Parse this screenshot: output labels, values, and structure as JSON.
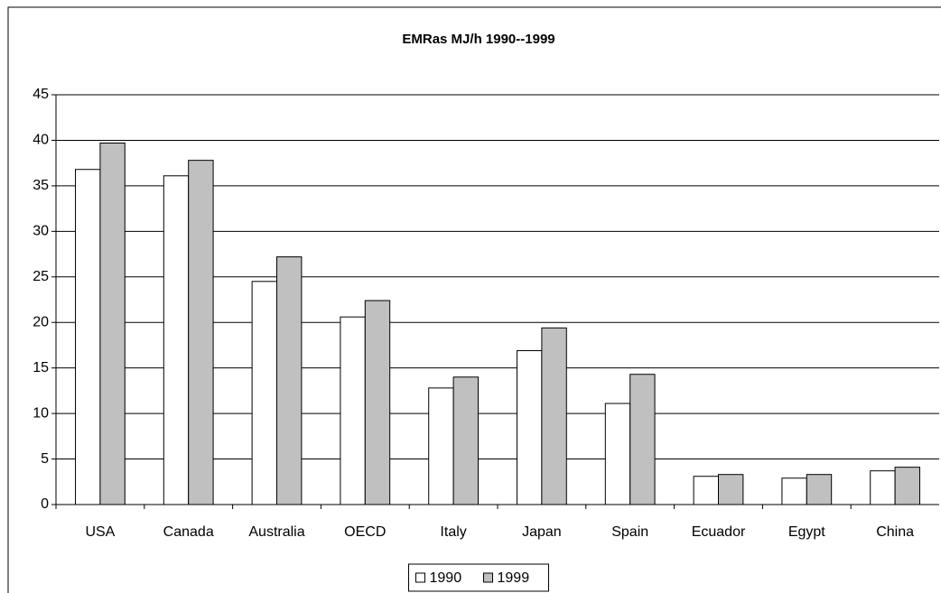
{
  "chart_data": {
    "type": "bar",
    "title": "EMRas MJ/h 1990--1999",
    "categories": [
      "USA",
      "Canada",
      "Australia",
      "OECD",
      "Italy",
      "Japan",
      "Spain",
      "Ecuador",
      "Egypt",
      "China"
    ],
    "series": [
      {
        "name": "1990",
        "color": "#ffffff",
        "values": [
          36.8,
          36.1,
          24.5,
          20.6,
          12.8,
          16.9,
          11.1,
          3.1,
          2.9,
          3.7
        ]
      },
      {
        "name": "1999",
        "color": "#c0c0c0",
        "values": [
          39.7,
          37.8,
          27.2,
          22.4,
          14.0,
          19.4,
          14.3,
          3.3,
          3.3,
          4.1
        ]
      }
    ],
    "ylim": [
      0,
      45
    ],
    "yticks": [
      0,
      5,
      10,
      15,
      20,
      25,
      30,
      35,
      40,
      45
    ],
    "grid": true,
    "legend": "bottom"
  }
}
